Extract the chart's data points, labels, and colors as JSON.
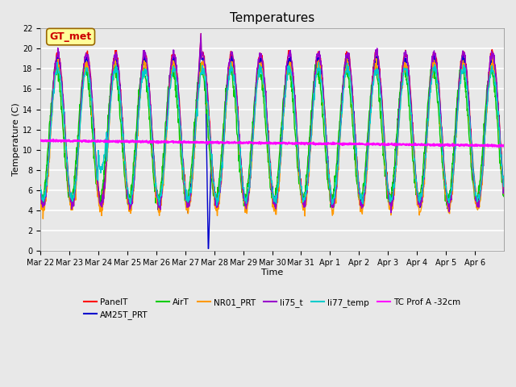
{
  "title": "Temperatures",
  "xlabel": "Time",
  "ylabel": "Temperature (C)",
  "ylim": [
    0,
    22
  ],
  "yticks": [
    0,
    2,
    4,
    6,
    8,
    10,
    12,
    14,
    16,
    18,
    20,
    22
  ],
  "x_labels": [
    "Mar 22",
    "Mar 23",
    "Mar 24",
    "Mar 25",
    "Mar 26",
    "Mar 27",
    "Mar 28",
    "Mar 29",
    "Mar 30",
    "Mar 31",
    "Apr 1",
    "Apr 2",
    "Apr 3",
    "Apr 4",
    "Apr 5",
    "Apr 6"
  ],
  "annotation_text": "GT_met",
  "annotation_color": "#cc0000",
  "annotation_bg": "#ffff99",
  "annotation_border": "#996600",
  "series_colors": {
    "PanelT": "#ff0000",
    "AM25T_PRT": "#0000cc",
    "AirT": "#00cc00",
    "NR01_PRT": "#ff9900",
    "li75_t": "#9900cc",
    "li77_temp": "#00cccc",
    "TC Prof A -32cm": "#ff00ff"
  },
  "background_color": "#e8e8e8",
  "plot_bg_color": "#e8e8e8",
  "grid_color": "#ffffff",
  "tc_prof_value": 10.9,
  "n_days": 16
}
